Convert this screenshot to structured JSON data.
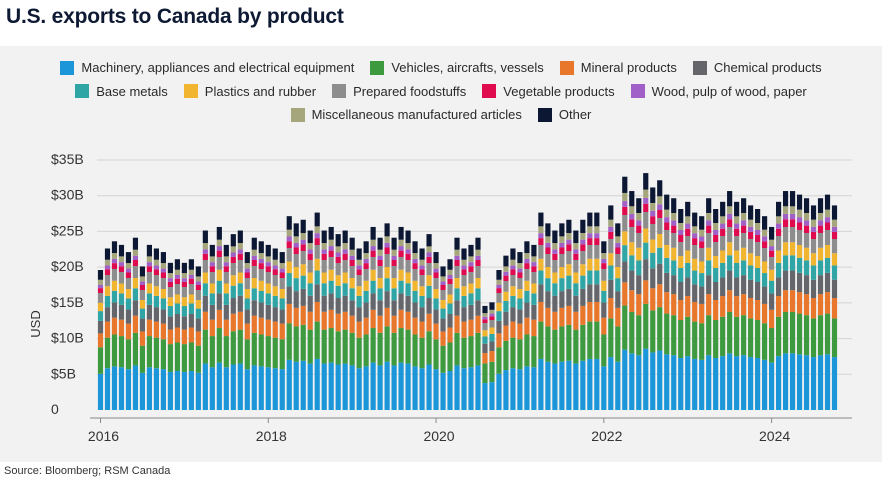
{
  "page": {
    "title": "U.S. exports to Canada by product",
    "source": "Source: Bloomberg; RSM Canada"
  },
  "chart_data": {
    "type": "bar",
    "stacked": true,
    "title": "U.S. exports to Canada by product",
    "ylabel": "USD",
    "xlabel": "",
    "ylim": [
      0,
      35
    ],
    "yticks": [
      0,
      5,
      10,
      15,
      20,
      25,
      30,
      35
    ],
    "ytick_labels": [
      "0",
      "$5B",
      "$10B",
      "$15B",
      "$20B",
      "$25B",
      "$30B",
      "$35B"
    ],
    "xtick_labels": [
      "2016",
      "2018",
      "2020",
      "2022",
      "2024"
    ],
    "grid": true,
    "legend_position": "top",
    "start": "2016-01",
    "frequency": "monthly",
    "series": [
      {
        "name": "Machinery, appliances and electrical equipment",
        "color": "#1b96d8"
      },
      {
        "name": "Vehicles, aircrafts, vessels",
        "color": "#3d9a3f"
      },
      {
        "name": "Mineral products",
        "color": "#e8762b"
      },
      {
        "name": "Chemical products",
        "color": "#64666b"
      },
      {
        "name": "Base metals",
        "color": "#2fa5a5"
      },
      {
        "name": "Plastics and rubber",
        "color": "#f2b530"
      },
      {
        "name": "Prepared foodstuffs",
        "color": "#8d8d8d"
      },
      {
        "name": "Vegetable products",
        "color": "#e00b4f"
      },
      {
        "name": "Wood, pulp of wood, paper",
        "color": "#a15fc8"
      },
      {
        "name": "Miscellaneous manufactured articles",
        "color": "#a6a67c"
      },
      {
        "name": "Other",
        "color": "#0b1733"
      }
    ],
    "totals": [
      19.5,
      22.5,
      23.5,
      23.0,
      22.0,
      24.0,
      20.0,
      23.0,
      22.5,
      22.0,
      20.5,
      21.0,
      20.5,
      21.0,
      20.0,
      25.0,
      23.0,
      25.5,
      23.0,
      24.5,
      25.0,
      22.0,
      24.0,
      23.5,
      23.0,
      22.5,
      22.0,
      27.0,
      26.0,
      26.5,
      25.0,
      27.5,
      25.0,
      25.5,
      24.5,
      25.0,
      24.0,
      22.5,
      23.5,
      25.5,
      24.0,
      26.0,
      24.0,
      25.5,
      25.0,
      23.5,
      22.5,
      24.5,
      22.0,
      20.0,
      21.0,
      24.0,
      22.5,
      23.0,
      24.0,
      14.5,
      15.0,
      19.5,
      21.5,
      22.5,
      22.0,
      23.5,
      23.0,
      27.5,
      26.0,
      25.0,
      26.0,
      26.5,
      25.0,
      26.5,
      27.5,
      27.5,
      23.5,
      28.5,
      26.0,
      32.5,
      30.5,
      29.5,
      33.0,
      31.0,
      32.0,
      30.0,
      29.5,
      28.0,
      29.0,
      27.5,
      27.0,
      29.5,
      28.0,
      29.0,
      30.5,
      29.0,
      29.5,
      28.5,
      28.0,
      27.0,
      25.5,
      29.0,
      30.5,
      30.5,
      30.0,
      29.5,
      28.5,
      29.5,
      30.0,
      28.5
    ]
  }
}
